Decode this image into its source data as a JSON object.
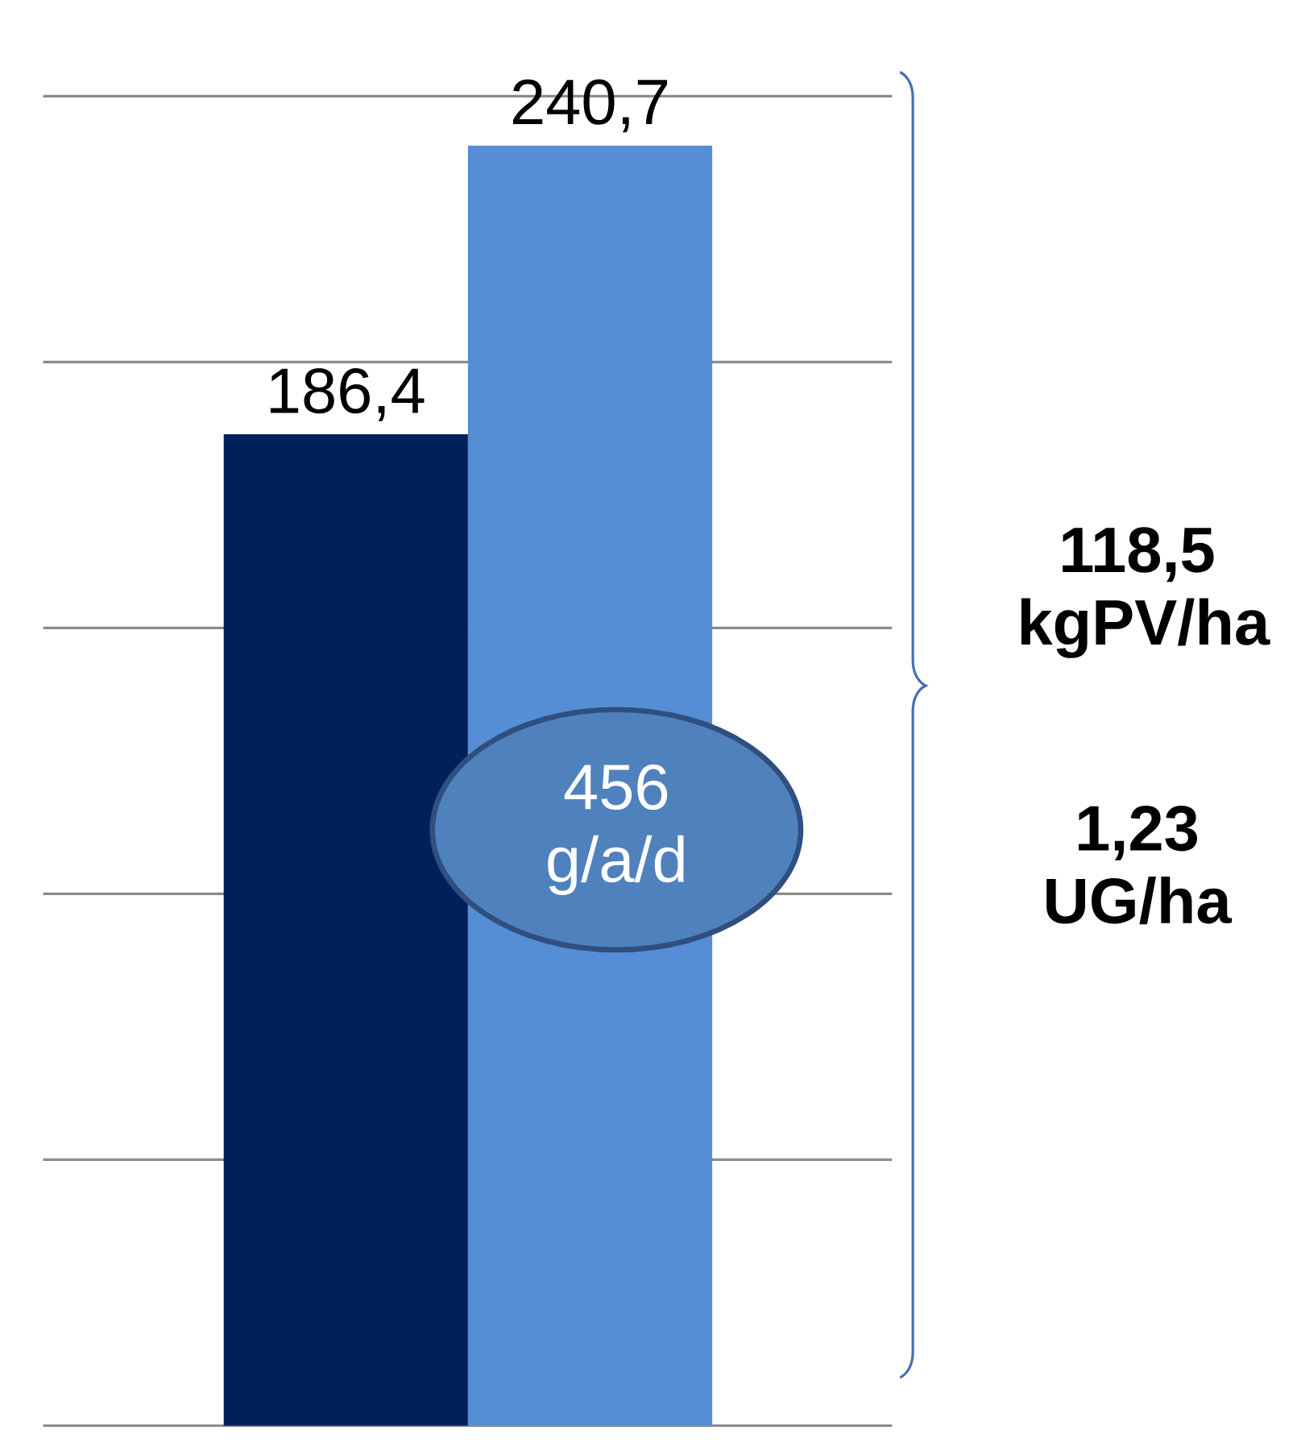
{
  "chart_data": {
    "type": "bar",
    "categories": [
      null,
      null
    ],
    "values": [
      186.4,
      240.7
    ],
    "colors": [
      "#00205c",
      "#558ed5"
    ],
    "value_labels": [
      "186,4",
      "240,7"
    ],
    "ylim": [
      0,
      250
    ],
    "yticks": [
      {
        "value": 0,
        "label": null
      },
      {
        "value": 50,
        "label": null
      },
      {
        "value": 100,
        "label": null
      },
      {
        "value": 150,
        "label": null
      },
      {
        "value": 200,
        "label": null
      },
      {
        "value": 250,
        "label": null
      }
    ],
    "grid": "y",
    "annotations": [
      "456 g/a/d",
      "118,5 kgPV/ha",
      "1,23 UG/ha"
    ]
  }
}
